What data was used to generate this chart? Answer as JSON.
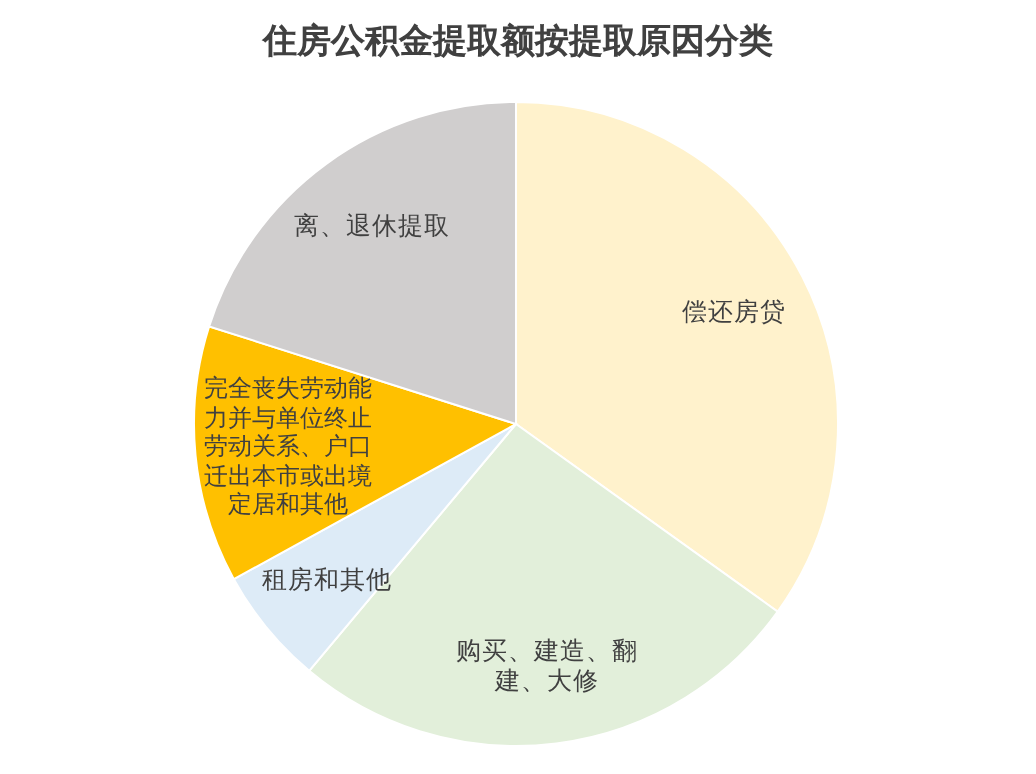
{
  "chart_data": {
    "type": "pie",
    "title": "住房公积金提取额按提取原因分类",
    "categories": [
      "偿还房贷",
      "购买、建造、翻建、大修",
      "租房和其他",
      "完全丧失劳动能力并与单位终止劳动关系、户口迁出本市或出境定居和其他",
      "离、退休提取"
    ],
    "values": [
      34.9,
      26.2,
      5.9,
      12.9,
      20.1
    ],
    "colors": [
      "#fff2cc",
      "#e2efda",
      "#ddebf7",
      "#ffc000",
      "#d0cece"
    ]
  }
}
